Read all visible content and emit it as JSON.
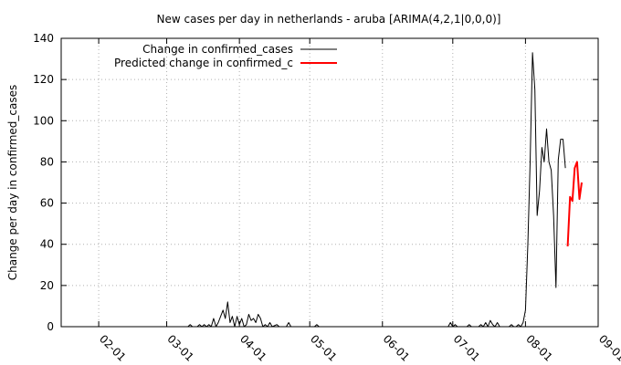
{
  "chart_data": {
    "type": "line",
    "title": "New cases per day in netherlands - aruba [ARIMA(4,2,1|0,0,0)]",
    "xlabel": "",
    "ylabel": "Change per day in confirmed_cases",
    "x_axis": "date",
    "xlim": [
      "2020-01-16",
      "2020-09-01"
    ],
    "ylim": [
      0,
      140
    ],
    "yticks": [
      0,
      20,
      40,
      60,
      80,
      100,
      120,
      140
    ],
    "xticks": [
      {
        "date": "2020-02-01",
        "label": "02-01"
      },
      {
        "date": "2020-03-01",
        "label": "03-01"
      },
      {
        "date": "2020-04-01",
        "label": "04-01"
      },
      {
        "date": "2020-05-01",
        "label": "05-01"
      },
      {
        "date": "2020-06-01",
        "label": "06-01"
      },
      {
        "date": "2020-07-01",
        "label": "07-01"
      },
      {
        "date": "2020-08-01",
        "label": "08-01"
      },
      {
        "date": "2020-09-01",
        "label": "09-01"
      }
    ],
    "grid": true,
    "legend_position": "top-left",
    "series": [
      {
        "name": "Change in confirmed_cases",
        "color": "#000000",
        "points": [
          [
            "2020-03-01",
            0
          ],
          [
            "2020-03-10",
            0
          ],
          [
            "2020-03-11",
            1
          ],
          [
            "2020-03-12",
            0
          ],
          [
            "2020-03-14",
            0
          ],
          [
            "2020-03-15",
            1
          ],
          [
            "2020-03-16",
            0
          ],
          [
            "2020-03-17",
            1
          ],
          [
            "2020-03-18",
            0
          ],
          [
            "2020-03-19",
            1
          ],
          [
            "2020-03-20",
            0
          ],
          [
            "2020-03-21",
            4
          ],
          [
            "2020-03-22",
            0
          ],
          [
            "2020-03-23",
            2
          ],
          [
            "2020-03-24",
            5
          ],
          [
            "2020-03-25",
            8
          ],
          [
            "2020-03-26",
            4
          ],
          [
            "2020-03-27",
            12
          ],
          [
            "2020-03-28",
            2
          ],
          [
            "2020-03-29",
            5
          ],
          [
            "2020-03-30",
            0
          ],
          [
            "2020-03-31",
            5
          ],
          [
            "2020-04-01",
            1
          ],
          [
            "2020-04-02",
            4
          ],
          [
            "2020-04-03",
            0
          ],
          [
            "2020-04-04",
            1
          ],
          [
            "2020-04-05",
            6
          ],
          [
            "2020-04-06",
            3
          ],
          [
            "2020-04-07",
            4
          ],
          [
            "2020-04-08",
            2
          ],
          [
            "2020-04-09",
            6
          ],
          [
            "2020-04-10",
            4
          ],
          [
            "2020-04-11",
            0
          ],
          [
            "2020-04-12",
            1
          ],
          [
            "2020-04-13",
            0
          ],
          [
            "2020-04-14",
            2
          ],
          [
            "2020-04-15",
            0
          ],
          [
            "2020-04-17",
            1
          ],
          [
            "2020-04-18",
            0
          ],
          [
            "2020-04-21",
            0
          ],
          [
            "2020-04-22",
            2
          ],
          [
            "2020-04-23",
            0
          ],
          [
            "2020-05-01",
            0
          ],
          [
            "2020-05-03",
            0
          ],
          [
            "2020-05-04",
            1
          ],
          [
            "2020-05-05",
            0
          ],
          [
            "2020-06-29",
            0
          ],
          [
            "2020-06-30",
            2
          ],
          [
            "2020-07-01",
            0
          ],
          [
            "2020-07-02",
            1
          ],
          [
            "2020-07-03",
            0
          ],
          [
            "2020-07-07",
            0
          ],
          [
            "2020-07-08",
            1
          ],
          [
            "2020-07-09",
            0
          ],
          [
            "2020-07-12",
            0
          ],
          [
            "2020-07-13",
            1
          ],
          [
            "2020-07-14",
            0
          ],
          [
            "2020-07-15",
            2
          ],
          [
            "2020-07-16",
            0
          ],
          [
            "2020-07-17",
            3
          ],
          [
            "2020-07-18",
            1
          ],
          [
            "2020-07-19",
            0
          ],
          [
            "2020-07-20",
            2
          ],
          [
            "2020-07-21",
            0
          ],
          [
            "2020-07-25",
            0
          ],
          [
            "2020-07-26",
            1
          ],
          [
            "2020-07-27",
            0
          ],
          [
            "2020-07-28",
            0
          ],
          [
            "2020-07-29",
            1
          ],
          [
            "2020-07-30",
            0
          ],
          [
            "2020-07-31",
            2
          ],
          [
            "2020-08-01",
            8
          ],
          [
            "2020-08-02",
            40
          ],
          [
            "2020-08-03",
            80
          ],
          [
            "2020-08-04",
            133
          ],
          [
            "2020-08-05",
            115
          ],
          [
            "2020-08-06",
            54
          ],
          [
            "2020-08-07",
            66
          ],
          [
            "2020-08-08",
            87
          ],
          [
            "2020-08-09",
            80
          ],
          [
            "2020-08-10",
            96
          ],
          [
            "2020-08-11",
            80
          ],
          [
            "2020-08-12",
            76
          ],
          [
            "2020-08-13",
            54
          ],
          [
            "2020-08-14",
            19
          ],
          [
            "2020-08-15",
            81
          ],
          [
            "2020-08-16",
            91
          ],
          [
            "2020-08-17",
            91
          ],
          [
            "2020-08-18",
            77
          ]
        ]
      },
      {
        "name": "Predicted change in confirmed_c",
        "color": "#ff0000",
        "points": [
          [
            "2020-08-19",
            39
          ],
          [
            "2020-08-20",
            63
          ],
          [
            "2020-08-21",
            61
          ],
          [
            "2020-08-22",
            77
          ],
          [
            "2020-08-23",
            80
          ],
          [
            "2020-08-24",
            62
          ],
          [
            "2020-08-25",
            70
          ]
        ]
      }
    ]
  }
}
